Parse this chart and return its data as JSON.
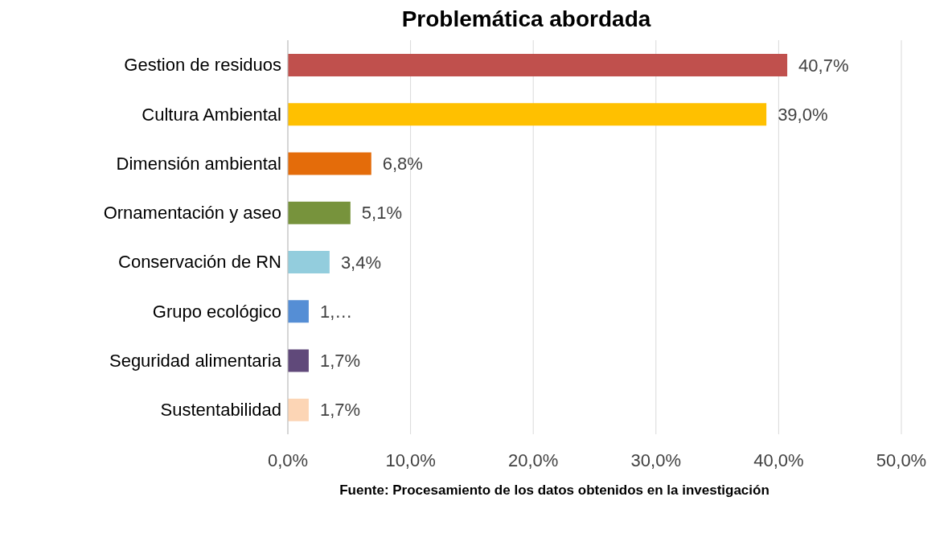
{
  "chart_data": {
    "type": "bar",
    "orientation": "horizontal",
    "title": "Problemática abordada",
    "categories": [
      "Gestion de residuos",
      "Cultura Ambiental",
      "Dimensión ambiental",
      "Ornamentación y aseo",
      "Conservación de RN",
      "Grupo ecológico",
      "Seguridad alimentaria",
      "Sustentabilidad"
    ],
    "values": [
      40.7,
      39.0,
      6.8,
      5.1,
      3.4,
      1.7,
      1.7,
      1.7
    ],
    "colors": [
      "#c0504d",
      "#ffc000",
      "#e46c0a",
      "#77933c",
      "#93cddd",
      "#558ed5",
      "#60497a",
      "#fcd5b5"
    ],
    "value_labels": [
      "40,7%",
      "39,0%",
      "6,8%",
      "5,1%",
      "3,4%",
      "1,…",
      "1,7%",
      "1,7%"
    ],
    "xlim": [
      0,
      50
    ],
    "xticks": [
      {
        "value": 0,
        "label": "0,0%"
      },
      {
        "value": 10,
        "label": "10,0%"
      },
      {
        "value": 20,
        "label": "20,0%"
      },
      {
        "value": 30,
        "label": "30,0%"
      },
      {
        "value": 40,
        "label": "40,0%"
      },
      {
        "value": 50,
        "label": "50,0%"
      }
    ],
    "grid": "x",
    "annotations": [
      "Fuente: Procesamiento de los datos obtenidos en la investigación"
    ]
  }
}
